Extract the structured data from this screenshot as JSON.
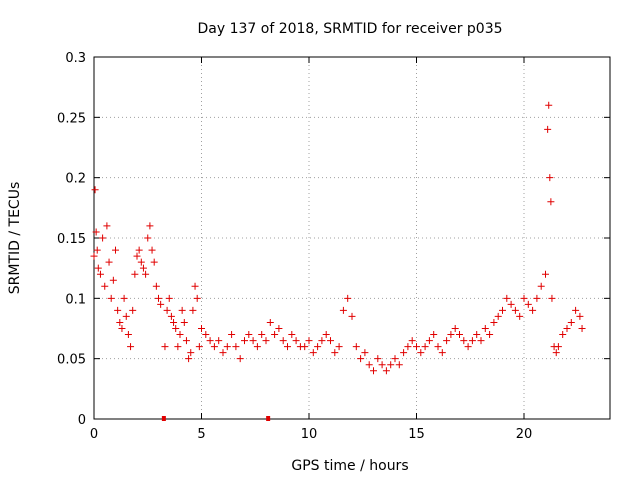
{
  "chart_data": {
    "type": "scatter",
    "title": "Day 137 of 2018, SRMTID for receiver p035",
    "xlabel": "GPS time / hours",
    "ylabel": "SRMTID / TECUs",
    "xlim": [
      0,
      24
    ],
    "ylim": [
      0,
      0.3
    ],
    "x_ticks": [
      "0",
      "5",
      "10",
      "15",
      "20"
    ],
    "x_tick_values": [
      0,
      5,
      10,
      15,
      20
    ],
    "y_ticks": [
      "0",
      "0.05",
      "0.1",
      "0.15",
      "0.2",
      "0.25",
      "0.3"
    ],
    "y_tick_values": [
      0,
      0.05,
      0.1,
      0.15,
      0.2,
      0.25,
      0.3
    ],
    "grid": true,
    "marker": "plus",
    "colors": {
      "series": "#e00000",
      "grid": "#a0a0a0"
    },
    "outage_markers_x": [
      3.25,
      8.1
    ],
    "series": [
      {
        "name": "SRMTID",
        "points_x": [
          0.0,
          0.05,
          0.1,
          0.15,
          0.2,
          0.3,
          0.4,
          0.5,
          0.6,
          0.7,
          0.8,
          0.9,
          1.0,
          1.1,
          1.2,
          1.3,
          1.4,
          1.5,
          1.6,
          1.7,
          1.8,
          1.9,
          2.0,
          2.1,
          2.2,
          2.3,
          2.4,
          2.5,
          2.6,
          2.7,
          2.8,
          2.9,
          3.0,
          3.1,
          3.3,
          3.4,
          3.5,
          3.6,
          3.7,
          3.8,
          3.9,
          4.0,
          4.1,
          4.2,
          4.3,
          4.4,
          4.5,
          4.6,
          4.7,
          4.8,
          4.9,
          5.0,
          5.2,
          5.4,
          5.6,
          5.8,
          6.0,
          6.2,
          6.4,
          6.6,
          6.8,
          7.0,
          7.2,
          7.4,
          7.6,
          7.8,
          8.0,
          8.2,
          8.4,
          8.6,
          8.8,
          9.0,
          9.2,
          9.4,
          9.6,
          9.8,
          10.0,
          10.2,
          10.4,
          10.6,
          10.8,
          11.0,
          11.2,
          11.4,
          11.6,
          11.8,
          12.0,
          12.2,
          12.4,
          12.6,
          12.8,
          13.0,
          13.2,
          13.4,
          13.6,
          13.8,
          14.0,
          14.2,
          14.4,
          14.6,
          14.8,
          15.0,
          15.2,
          15.4,
          15.6,
          15.8,
          16.0,
          16.2,
          16.4,
          16.6,
          16.8,
          17.0,
          17.2,
          17.4,
          17.6,
          17.8,
          18.0,
          18.2,
          18.4,
          18.6,
          18.8,
          19.0,
          19.2,
          19.4,
          19.6,
          19.8,
          20.0,
          20.2,
          20.4,
          20.6,
          20.8,
          21.0,
          21.1,
          21.15,
          21.2,
          21.25,
          21.3,
          21.4,
          21.5,
          21.6,
          21.8,
          22.0,
          22.2,
          22.4,
          22.6,
          22.7
        ],
        "points_y": [
          0.135,
          0.19,
          0.155,
          0.14,
          0.125,
          0.12,
          0.15,
          0.11,
          0.16,
          0.13,
          0.1,
          0.115,
          0.14,
          0.09,
          0.08,
          0.075,
          0.1,
          0.085,
          0.07,
          0.06,
          0.09,
          0.12,
          0.135,
          0.14,
          0.13,
          0.125,
          0.12,
          0.15,
          0.16,
          0.14,
          0.13,
          0.11,
          0.1,
          0.095,
          0.06,
          0.09,
          0.1,
          0.085,
          0.08,
          0.075,
          0.06,
          0.07,
          0.09,
          0.08,
          0.065,
          0.05,
          0.055,
          0.09,
          0.11,
          0.1,
          0.06,
          0.075,
          0.07,
          0.065,
          0.06,
          0.065,
          0.055,
          0.06,
          0.07,
          0.06,
          0.05,
          0.065,
          0.07,
          0.065,
          0.06,
          0.07,
          0.065,
          0.08,
          0.07,
          0.075,
          0.065,
          0.06,
          0.07,
          0.065,
          0.06,
          0.06,
          0.065,
          0.055,
          0.06,
          0.065,
          0.07,
          0.065,
          0.055,
          0.06,
          0.09,
          0.1,
          0.085,
          0.06,
          0.05,
          0.055,
          0.045,
          0.04,
          0.05,
          0.045,
          0.04,
          0.045,
          0.05,
          0.045,
          0.055,
          0.06,
          0.065,
          0.06,
          0.055,
          0.06,
          0.065,
          0.07,
          0.06,
          0.055,
          0.065,
          0.07,
          0.075,
          0.07,
          0.065,
          0.06,
          0.065,
          0.07,
          0.065,
          0.075,
          0.07,
          0.08,
          0.085,
          0.09,
          0.1,
          0.095,
          0.09,
          0.085,
          0.1,
          0.095,
          0.09,
          0.1,
          0.11,
          0.12,
          0.24,
          0.26,
          0.2,
          0.18,
          0.1,
          0.06,
          0.055,
          0.06,
          0.07,
          0.075,
          0.08,
          0.09,
          0.085,
          0.075
        ]
      }
    ]
  }
}
